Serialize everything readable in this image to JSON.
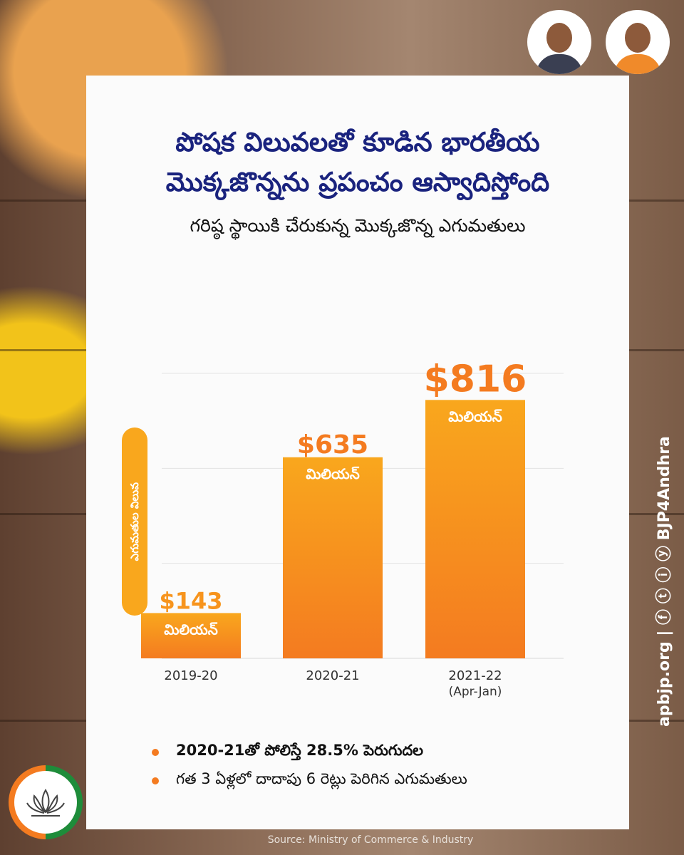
{
  "header": {
    "title_line1": "పోషక విలువలతో కూడిన భారతీయ",
    "title_line2": "మొక్కజొన్నను ప్రపంచం ఆస్వాదిస్తోంది",
    "subtitle": "గరిష్ఠ స్థాయికి చేరుకున్న మొక్కజొన్న ఎగుమతులు"
  },
  "chart_data": {
    "type": "bar",
    "categories": [
      "2019-20",
      "2020-21",
      "2021-22"
    ],
    "category_notes": [
      "",
      "",
      "(Apr-Jan)"
    ],
    "values": [
      143,
      635,
      816
    ],
    "value_labels": [
      "$143",
      "$635",
      "$816"
    ],
    "unit_label": "మిలియన్",
    "ylabel": "ఎగుమతుల విలువ",
    "ylim": [
      0,
      900
    ],
    "grid": true,
    "colors": {
      "bar_top": "#f9a71d",
      "bar_bottom": "#f47b20",
      "value_small": "#f7941d",
      "value_large": "#f47b20"
    }
  },
  "bullets": [
    "2020-21తో పోలిస్తే 28.5% పెరుగుదల",
    "గత 3 ఏళ్లలో దాదాపు 6 రెట్లు పెరిగిన ఎగుమతులు"
  ],
  "source": "Source: Ministry of Commerce & Industry",
  "sidebar": {
    "handle": "apbjp.org | ⓕ ⓣ ⓘ ⓨ BJP4Andhra"
  },
  "colors": {
    "title": "#1a237e",
    "accent": "#f47b20",
    "card_bg": "#fbfbfb"
  }
}
